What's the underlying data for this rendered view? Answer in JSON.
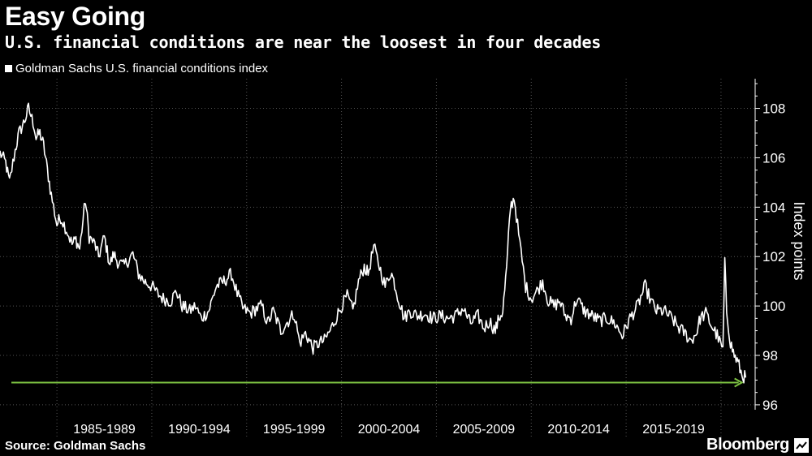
{
  "header": {
    "title": "Easy Going",
    "subtitle": "U.S. financial conditions are near the loosest in four decades"
  },
  "footer": {
    "source": "Source: Goldman Sachs",
    "brand": "Bloomberg"
  },
  "colors": {
    "background": "#000000",
    "series": "#ffffff",
    "grid": "#555555",
    "arrow": "#7dc242"
  },
  "chart_data": {
    "type": "line",
    "title": "Easy Going",
    "subtitle": "U.S. financial conditions are near the loosest in four decades",
    "xlabel": "",
    "ylabel": "Index points",
    "y_axis_position": "right",
    "ylim": [
      95.8,
      109.2
    ],
    "yticks": [
      96,
      98,
      100,
      102,
      104,
      106,
      108
    ],
    "xlim": [
      1982.0,
      2021.8
    ],
    "x_period_labels": [
      "1985-1989",
      "1990-1994",
      "1995-1999",
      "2000-2004",
      "2005-2009",
      "2010-2014",
      "2015-2019"
    ],
    "x_dividers": [
      1985,
      1990,
      1995,
      2000,
      2005,
      2010,
      2015,
      2020
    ],
    "grid": true,
    "annotation": {
      "type": "arrow",
      "description": "green horizontal arrow marking current low",
      "y": 96.9,
      "x_start": 1982.6,
      "x_end": 2021.1
    },
    "series": [
      {
        "name": "Goldman Sachs U.S. financial conditions index",
        "x": [
          1982.0,
          1982.3,
          1982.5,
          1982.8,
          1983.0,
          1983.3,
          1983.5,
          1983.8,
          1983.9,
          1984.1,
          1984.3,
          1984.5,
          1984.7,
          1985.0,
          1985.2,
          1985.5,
          1985.8,
          1986.0,
          1986.2,
          1986.5,
          1986.7,
          1987.0,
          1987.2,
          1987.5,
          1987.7,
          1987.8,
          1988.0,
          1988.2,
          1988.5,
          1988.8,
          1989.0,
          1989.3,
          1989.6,
          1990.0,
          1990.3,
          1990.6,
          1991.0,
          1991.3,
          1991.6,
          1992.0,
          1992.3,
          1992.6,
          1993.0,
          1993.4,
          1993.8,
          1994.2,
          1994.5,
          1994.8,
          1995.2,
          1995.5,
          1995.8,
          1996.1,
          1996.4,
          1996.8,
          1997.2,
          1997.5,
          1997.8,
          1998.1,
          1998.5,
          1998.8,
          1999.1,
          1999.4,
          1999.7,
          2000.0,
          2000.3,
          2000.6,
          2000.9,
          2001.2,
          2001.4,
          2001.7,
          2002.0,
          2002.3,
          2002.6,
          2002.8,
          2003.0,
          2003.3,
          2003.6,
          2004.0,
          2004.4,
          2004.8,
          2005.2,
          2005.6,
          2006.0,
          2006.4,
          2006.8,
          2007.2,
          2007.5,
          2007.8,
          2008.1,
          2008.3,
          2008.5,
          2008.7,
          2008.9,
          2009.1,
          2009.4,
          2009.7,
          2010.0,
          2010.3,
          2010.6,
          2010.9,
          2011.2,
          2011.5,
          2011.8,
          2012.1,
          2012.4,
          2012.8,
          2013.2,
          2013.6,
          2014.0,
          2014.4,
          2014.8,
          2015.2,
          2015.6,
          2016.0,
          2016.3,
          2016.6,
          2017.0,
          2017.4,
          2017.8,
          2018.1,
          2018.4,
          2018.7,
          2018.9,
          2019.2,
          2019.5,
          2019.8,
          2020.1,
          2020.2,
          2020.3,
          2020.5,
          2020.7,
          2020.9,
          2021.1,
          2021.3
        ],
        "values": [
          106.2,
          105.8,
          105.0,
          106.3,
          107.0,
          107.5,
          108.0,
          107.3,
          106.8,
          107.0,
          106.5,
          105.5,
          104.5,
          103.3,
          103.6,
          103.1,
          102.5,
          102.7,
          102.3,
          104.3,
          102.8,
          102.5,
          102.0,
          102.8,
          102.0,
          101.7,
          102.1,
          101.8,
          101.6,
          101.9,
          102.1,
          101.3,
          101.0,
          100.8,
          100.5,
          100.3,
          100.2,
          100.6,
          100.0,
          99.8,
          100.0,
          99.5,
          99.8,
          100.8,
          101.0,
          101.3,
          100.5,
          99.9,
          99.7,
          99.9,
          100.0,
          99.3,
          99.8,
          99.0,
          99.4,
          99.7,
          98.5,
          98.9,
          98.3,
          98.5,
          98.6,
          99.0,
          99.5,
          100.0,
          100.4,
          99.8,
          101.0,
          101.6,
          101.3,
          102.4,
          101.6,
          100.8,
          101.4,
          100.9,
          100.3,
          99.5,
          99.8,
          99.6,
          99.7,
          99.5,
          99.6,
          99.5,
          99.6,
          99.9,
          99.3,
          99.6,
          99.1,
          99.4,
          99.0,
          99.5,
          99.8,
          101.5,
          104.0,
          104.4,
          102.5,
          100.8,
          100.3,
          100.6,
          101.0,
          100.2,
          100.0,
          100.2,
          99.6,
          99.5,
          100.3,
          99.8,
          99.6,
          99.4,
          99.5,
          99.3,
          98.8,
          99.5,
          100.0,
          100.8,
          100.2,
          99.8,
          99.8,
          99.5,
          99.1,
          98.9,
          98.6,
          98.9,
          99.5,
          99.7,
          99.2,
          98.8,
          98.2,
          101.7,
          99.8,
          98.5,
          98.0,
          97.7,
          97.2,
          97.1
        ]
      }
    ]
  }
}
